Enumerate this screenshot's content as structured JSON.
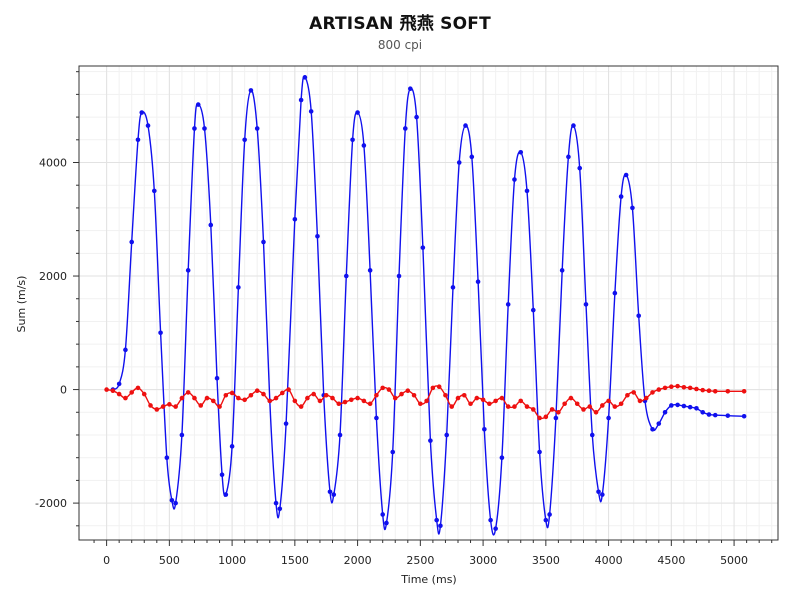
{
  "chart_data": {
    "type": "scatter",
    "title": "ARTISAN 飛燕 SOFT",
    "subtitle": "800 cpi",
    "xlabel": "Time (ms)",
    "ylabel": "Sum (m/s)",
    "xlim": [
      -220,
      5350
    ],
    "ylim": [
      -2650,
      5700
    ],
    "x_ticks": [
      0,
      500,
      1000,
      1500,
      2000,
      2500,
      3000,
      3500,
      4000,
      4500,
      5000
    ],
    "y_ticks": [
      -2000,
      0,
      2000,
      4000
    ],
    "grid": true,
    "series": [
      {
        "color": "#1010ee",
        "style": "line-with-markers",
        "points": [
          [
            50,
            0
          ],
          [
            100,
            100
          ],
          [
            150,
            700
          ],
          [
            200,
            2600
          ],
          [
            250,
            4400
          ],
          [
            280,
            4880
          ],
          [
            330,
            4650
          ],
          [
            380,
            3500
          ],
          [
            430,
            1000
          ],
          [
            480,
            -1200
          ],
          [
            520,
            -1950
          ],
          [
            550,
            -2000
          ],
          [
            600,
            -800
          ],
          [
            650,
            2100
          ],
          [
            700,
            4600
          ],
          [
            730,
            5020
          ],
          [
            780,
            4600
          ],
          [
            830,
            2900
          ],
          [
            880,
            200
          ],
          [
            920,
            -1500
          ],
          [
            950,
            -1850
          ],
          [
            1000,
            -1000
          ],
          [
            1050,
            1800
          ],
          [
            1100,
            4400
          ],
          [
            1150,
            5270
          ],
          [
            1200,
            4600
          ],
          [
            1250,
            2600
          ],
          [
            1300,
            -200
          ],
          [
            1350,
            -2000
          ],
          [
            1380,
            -2100
          ],
          [
            1430,
            -600
          ],
          [
            1500,
            3000
          ],
          [
            1550,
            5100
          ],
          [
            1580,
            5500
          ],
          [
            1630,
            4900
          ],
          [
            1680,
            2700
          ],
          [
            1730,
            -100
          ],
          [
            1780,
            -1800
          ],
          [
            1810,
            -1850
          ],
          [
            1860,
            -800
          ],
          [
            1910,
            2000
          ],
          [
            1960,
            4400
          ],
          [
            2000,
            4880
          ],
          [
            2050,
            4300
          ],
          [
            2100,
            2100
          ],
          [
            2150,
            -500
          ],
          [
            2200,
            -2200
          ],
          [
            2230,
            -2350
          ],
          [
            2280,
            -1100
          ],
          [
            2330,
            2000
          ],
          [
            2380,
            4600
          ],
          [
            2420,
            5300
          ],
          [
            2470,
            4800
          ],
          [
            2520,
            2500
          ],
          [
            2580,
            -900
          ],
          [
            2630,
            -2300
          ],
          [
            2660,
            -2400
          ],
          [
            2710,
            -800
          ],
          [
            2760,
            1800
          ],
          [
            2810,
            4000
          ],
          [
            2860,
            4650
          ],
          [
            2910,
            4100
          ],
          [
            2960,
            1900
          ],
          [
            3010,
            -700
          ],
          [
            3060,
            -2300
          ],
          [
            3100,
            -2450
          ],
          [
            3150,
            -1200
          ],
          [
            3200,
            1500
          ],
          [
            3250,
            3700
          ],
          [
            3300,
            4180
          ],
          [
            3350,
            3500
          ],
          [
            3400,
            1400
          ],
          [
            3450,
            -1100
          ],
          [
            3500,
            -2300
          ],
          [
            3530,
            -2200
          ],
          [
            3580,
            -500
          ],
          [
            3630,
            2100
          ],
          [
            3680,
            4100
          ],
          [
            3720,
            4650
          ],
          [
            3770,
            3900
          ],
          [
            3820,
            1500
          ],
          [
            3870,
            -800
          ],
          [
            3920,
            -1800
          ],
          [
            3950,
            -1850
          ],
          [
            4000,
            -500
          ],
          [
            4050,
            1700
          ],
          [
            4100,
            3400
          ],
          [
            4140,
            3780
          ],
          [
            4190,
            3200
          ],
          [
            4240,
            1300
          ],
          [
            4290,
            -200
          ],
          [
            4350,
            -700
          ],
          [
            4400,
            -600
          ],
          [
            4450,
            -400
          ],
          [
            4500,
            -280
          ],
          [
            4550,
            -270
          ],
          [
            4600,
            -290
          ],
          [
            4650,
            -310
          ],
          [
            4700,
            -330
          ],
          [
            4750,
            -400
          ],
          [
            4800,
            -440
          ],
          [
            4850,
            -450
          ],
          [
            4950,
            -460
          ],
          [
            5080,
            -470
          ]
        ]
      },
      {
        "color": "#ee1010",
        "style": "line-with-markers",
        "points": [
          [
            0,
            0
          ],
          [
            50,
            -20
          ],
          [
            100,
            -80
          ],
          [
            150,
            -150
          ],
          [
            200,
            -50
          ],
          [
            250,
            30
          ],
          [
            300,
            -80
          ],
          [
            350,
            -280
          ],
          [
            400,
            -350
          ],
          [
            450,
            -300
          ],
          [
            500,
            -260
          ],
          [
            550,
            -300
          ],
          [
            600,
            -150
          ],
          [
            650,
            -50
          ],
          [
            700,
            -150
          ],
          [
            750,
            -280
          ],
          [
            800,
            -150
          ],
          [
            850,
            -200
          ],
          [
            900,
            -300
          ],
          [
            950,
            -100
          ],
          [
            1000,
            -60
          ],
          [
            1050,
            -150
          ],
          [
            1100,
            -180
          ],
          [
            1150,
            -100
          ],
          [
            1200,
            -20
          ],
          [
            1250,
            -80
          ],
          [
            1300,
            -200
          ],
          [
            1350,
            -150
          ],
          [
            1400,
            -60
          ],
          [
            1450,
            0
          ],
          [
            1500,
            -200
          ],
          [
            1550,
            -300
          ],
          [
            1600,
            -150
          ],
          [
            1650,
            -80
          ],
          [
            1700,
            -200
          ],
          [
            1750,
            -100
          ],
          [
            1800,
            -150
          ],
          [
            1850,
            -250
          ],
          [
            1900,
            -220
          ],
          [
            1950,
            -180
          ],
          [
            2000,
            -150
          ],
          [
            2050,
            -200
          ],
          [
            2100,
            -250
          ],
          [
            2150,
            -100
          ],
          [
            2200,
            30
          ],
          [
            2250,
            0
          ],
          [
            2300,
            -150
          ],
          [
            2350,
            -80
          ],
          [
            2400,
            -20
          ],
          [
            2450,
            -100
          ],
          [
            2500,
            -250
          ],
          [
            2550,
            -200
          ],
          [
            2600,
            30
          ],
          [
            2650,
            50
          ],
          [
            2700,
            -100
          ],
          [
            2750,
            -300
          ],
          [
            2800,
            -150
          ],
          [
            2850,
            -100
          ],
          [
            2900,
            -250
          ],
          [
            2950,
            -150
          ],
          [
            3000,
            -180
          ],
          [
            3050,
            -250
          ],
          [
            3100,
            -200
          ],
          [
            3150,
            -150
          ],
          [
            3200,
            -300
          ],
          [
            3250,
            -300
          ],
          [
            3300,
            -200
          ],
          [
            3350,
            -300
          ],
          [
            3400,
            -350
          ],
          [
            3450,
            -500
          ],
          [
            3500,
            -480
          ],
          [
            3550,
            -350
          ],
          [
            3600,
            -400
          ],
          [
            3650,
            -250
          ],
          [
            3700,
            -150
          ],
          [
            3750,
            -250
          ],
          [
            3800,
            -350
          ],
          [
            3850,
            -300
          ],
          [
            3900,
            -400
          ],
          [
            3950,
            -280
          ],
          [
            4000,
            -200
          ],
          [
            4050,
            -300
          ],
          [
            4100,
            -250
          ],
          [
            4150,
            -100
          ],
          [
            4200,
            -50
          ],
          [
            4250,
            -200
          ],
          [
            4300,
            -150
          ],
          [
            4350,
            -50
          ],
          [
            4400,
            0
          ],
          [
            4450,
            30
          ],
          [
            4500,
            50
          ],
          [
            4550,
            60
          ],
          [
            4600,
            40
          ],
          [
            4650,
            30
          ],
          [
            4700,
            10
          ],
          [
            4750,
            -10
          ],
          [
            4800,
            -20
          ],
          [
            4850,
            -30
          ],
          [
            4950,
            -30
          ],
          [
            5080,
            -30
          ]
        ]
      }
    ]
  }
}
